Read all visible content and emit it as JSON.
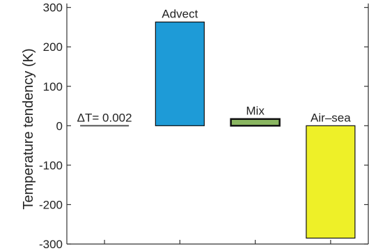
{
  "chart_data": {
    "type": "bar",
    "categories": [
      "ΔT",
      "Advect",
      "Mix",
      "Air–sea"
    ],
    "values": [
      0.002,
      263,
      17,
      -285
    ],
    "bar_labels": [
      "ΔT= 0.002",
      "Advect",
      "Mix",
      "Air–sea"
    ],
    "bar_colors": [
      "#555555",
      "#1e9bd7",
      "#8ab661",
      "#eef028"
    ],
    "title": "",
    "xlabel": "",
    "ylabel": "Temperature tendency (K)",
    "ylim": [
      -300,
      310
    ],
    "yticks": [
      300,
      200,
      100,
      0,
      -100,
      -200,
      -300
    ],
    "ytick_labels": [
      "300",
      "200",
      "100",
      "0",
      "-100",
      "-200",
      "-300"
    ],
    "grid": false,
    "legend": "none"
  }
}
